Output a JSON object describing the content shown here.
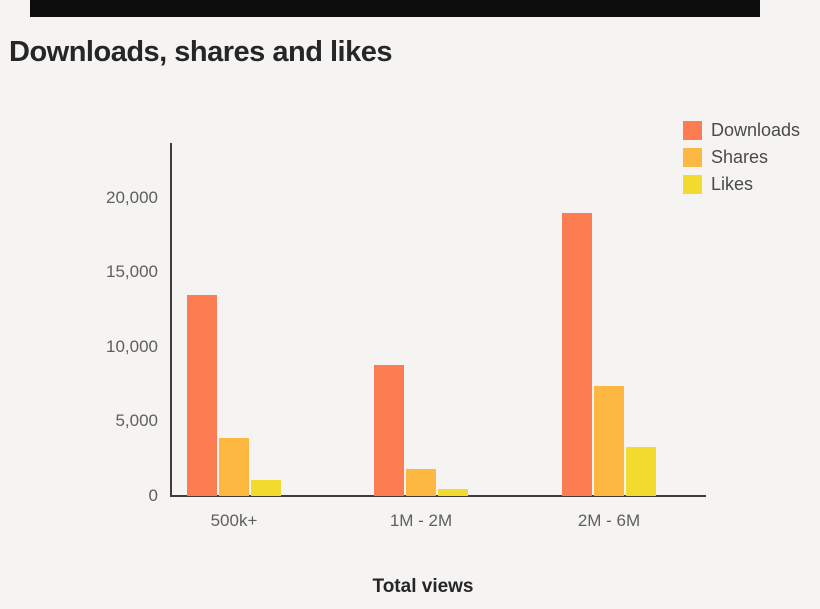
{
  "page": {
    "background_color": "#f5f4f2",
    "top_banner_color": "#0c0c0c"
  },
  "title": "Downloads, shares and likes",
  "chart_data": {
    "type": "bar",
    "title": "Downloads, shares and likes",
    "categories": [
      "500k+",
      "1M - 2M",
      "2M - 6M"
    ],
    "series": [
      {
        "name": "Downloads",
        "color": "#FB7D51",
        "values": [
          13500,
          8800,
          19000
        ]
      },
      {
        "name": "Shares",
        "color": "#FDB842",
        "values": [
          3900,
          1800,
          7400
        ]
      },
      {
        "name": "Likes",
        "color": "#F2DB2E",
        "values": [
          1050,
          500,
          3300
        ]
      }
    ],
    "xlabel": "Total views",
    "ylabel": "",
    "ylim": [
      0,
      23700
    ],
    "yticks": [
      0,
      5000,
      10000,
      15000,
      20000
    ],
    "ytick_labels": [
      "0",
      "5,000",
      "10,000",
      "15,000",
      "20,000"
    ],
    "grid": false,
    "legend_position": "top-right"
  }
}
